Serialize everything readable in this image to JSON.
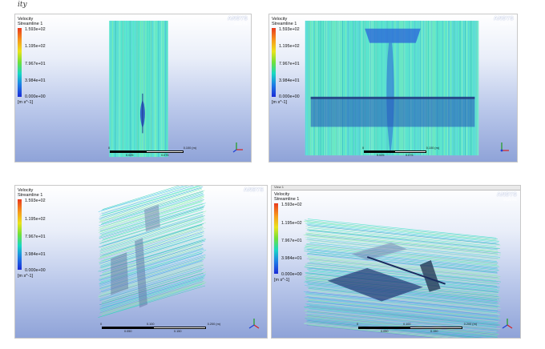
{
  "page": {
    "header_text": "ity"
  },
  "legend": {
    "title": "Velocity",
    "subtitle": "Streamline 1",
    "ticks": [
      "1.593e+02",
      "1.195e+02",
      "7.967e+01",
      "3.984e+01",
      "0.000e+00"
    ],
    "unit": "[m s^-1]"
  },
  "logo": {
    "name": "ANSYS",
    "version": "2020 R1"
  },
  "panels": [
    {
      "scale": {
        "ticks": [
          "0",
          "0.100 (m)"
        ],
        "sub": [
          "0.025",
          "0.075"
        ]
      }
    },
    {
      "scale": {
        "ticks": [
          "0",
          "0.100 (m)"
        ],
        "sub": [
          "0.025",
          "0.075"
        ]
      }
    },
    {
      "scale": {
        "ticks": [
          "0",
          "0.100",
          "0.200 (m)"
        ],
        "sub": [
          "0.050",
          "0.150"
        ]
      }
    },
    {
      "tab_label": "View 1",
      "scale": {
        "ticks": [
          "0",
          "0.100",
          "0.200 (m)"
        ],
        "sub": [
          "0.050",
          "0.150"
        ]
      }
    }
  ],
  "colors": {
    "bg_top": "#ffffff",
    "bg_bottom": "#8fa3d8",
    "flow_cyan": "#3fe6c8",
    "flow_green": "#7ef0a0",
    "flow_blue": "#2a63d9",
    "flow_dark": "#203a7a"
  },
  "icons": [
    "coordinate-triad-icon",
    "ansys-logo"
  ]
}
